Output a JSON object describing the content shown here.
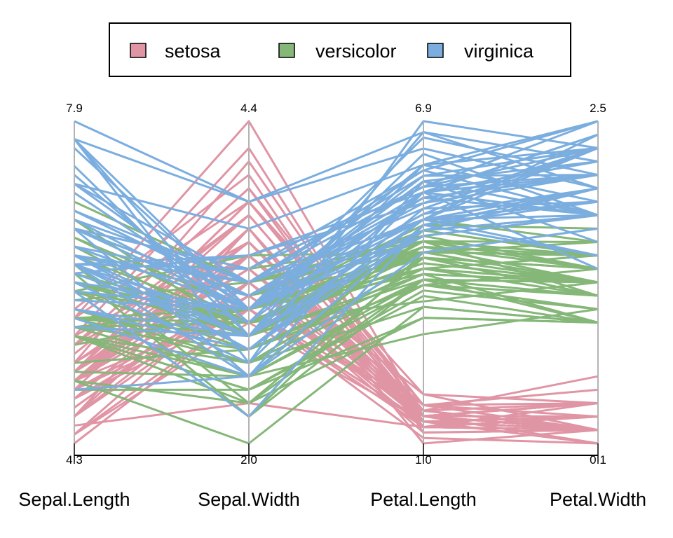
{
  "chart_data": {
    "type": "parallel-coordinates",
    "title": "",
    "legend": {
      "position": "top",
      "frame": true
    },
    "colors": {
      "setosa": "#E095A5",
      "versicolor": "#84B778",
      "virginica": "#7BAEDF",
      "axis": "#b3b3b3",
      "baseline": "#000000"
    },
    "dimensions": [
      {
        "name": "Sepal.Length",
        "min": 4.3,
        "max": 7.9,
        "min_label": "4.3",
        "max_label": "7.9"
      },
      {
        "name": "Sepal.Width",
        "min": 2.0,
        "max": 4.4,
        "min_label": "2.0",
        "max_label": "4.4"
      },
      {
        "name": "Petal.Length",
        "min": 1.0,
        "max": 6.9,
        "min_label": "1.0",
        "max_label": "6.9"
      },
      {
        "name": "Petal.Width",
        "min": 0.1,
        "max": 2.5,
        "min_label": "0.1",
        "max_label": "2.5"
      }
    ],
    "series": [
      {
        "name": "setosa",
        "values": [
          [
            5.1,
            3.5,
            1.4,
            0.2
          ],
          [
            4.9,
            3.0,
            1.4,
            0.2
          ],
          [
            4.7,
            3.2,
            1.3,
            0.2
          ],
          [
            4.6,
            3.1,
            1.5,
            0.2
          ],
          [
            5.0,
            3.6,
            1.4,
            0.2
          ],
          [
            5.4,
            3.9,
            1.7,
            0.4
          ],
          [
            4.6,
            3.4,
            1.4,
            0.3
          ],
          [
            5.0,
            3.4,
            1.5,
            0.2
          ],
          [
            4.4,
            2.9,
            1.4,
            0.2
          ],
          [
            4.9,
            3.1,
            1.5,
            0.1
          ],
          [
            5.4,
            3.7,
            1.5,
            0.2
          ],
          [
            4.8,
            3.4,
            1.6,
            0.2
          ],
          [
            4.8,
            3.0,
            1.4,
            0.1
          ],
          [
            4.3,
            3.0,
            1.1,
            0.1
          ],
          [
            5.8,
            4.0,
            1.2,
            0.2
          ],
          [
            5.7,
            4.4,
            1.5,
            0.4
          ],
          [
            5.4,
            3.9,
            1.3,
            0.4
          ],
          [
            5.1,
            3.5,
            1.4,
            0.3
          ],
          [
            5.7,
            3.8,
            1.7,
            0.3
          ],
          [
            5.1,
            3.8,
            1.5,
            0.3
          ],
          [
            5.4,
            3.4,
            1.7,
            0.2
          ],
          [
            5.1,
            3.7,
            1.5,
            0.4
          ],
          [
            4.6,
            3.6,
            1.0,
            0.2
          ],
          [
            5.1,
            3.3,
            1.7,
            0.5
          ],
          [
            4.8,
            3.4,
            1.9,
            0.2
          ],
          [
            5.0,
            3.0,
            1.6,
            0.2
          ],
          [
            5.0,
            3.4,
            1.6,
            0.4
          ],
          [
            5.2,
            3.5,
            1.5,
            0.2
          ],
          [
            5.2,
            3.4,
            1.4,
            0.2
          ],
          [
            4.7,
            3.2,
            1.6,
            0.2
          ],
          [
            4.8,
            3.1,
            1.6,
            0.2
          ],
          [
            5.4,
            3.4,
            1.5,
            0.4
          ],
          [
            5.2,
            4.1,
            1.5,
            0.1
          ],
          [
            5.5,
            4.2,
            1.4,
            0.2
          ],
          [
            4.9,
            3.1,
            1.5,
            0.2
          ],
          [
            5.0,
            3.2,
            1.2,
            0.2
          ],
          [
            5.5,
            3.5,
            1.3,
            0.2
          ],
          [
            4.9,
            3.6,
            1.4,
            0.1
          ],
          [
            4.4,
            3.0,
            1.3,
            0.2
          ],
          [
            5.1,
            3.4,
            1.5,
            0.2
          ],
          [
            5.0,
            3.5,
            1.3,
            0.3
          ],
          [
            4.5,
            2.3,
            1.3,
            0.3
          ],
          [
            4.4,
            3.2,
            1.3,
            0.2
          ],
          [
            5.0,
            3.5,
            1.6,
            0.6
          ],
          [
            5.1,
            3.8,
            1.9,
            0.4
          ],
          [
            4.8,
            3.0,
            1.4,
            0.3
          ],
          [
            5.1,
            3.8,
            1.6,
            0.2
          ],
          [
            4.6,
            3.2,
            1.4,
            0.2
          ],
          [
            5.3,
            3.7,
            1.5,
            0.2
          ],
          [
            5.0,
            3.3,
            1.4,
            0.2
          ]
        ]
      },
      {
        "name": "versicolor",
        "values": [
          [
            7.0,
            3.2,
            4.7,
            1.4
          ],
          [
            6.4,
            3.2,
            4.5,
            1.5
          ],
          [
            6.9,
            3.1,
            4.9,
            1.5
          ],
          [
            5.5,
            2.3,
            4.0,
            1.3
          ],
          [
            6.5,
            2.8,
            4.6,
            1.5
          ],
          [
            5.7,
            2.8,
            4.5,
            1.3
          ],
          [
            6.3,
            3.3,
            4.7,
            1.6
          ],
          [
            4.9,
            2.4,
            3.3,
            1.0
          ],
          [
            6.6,
            2.9,
            4.6,
            1.3
          ],
          [
            5.2,
            2.7,
            3.9,
            1.4
          ],
          [
            5.0,
            2.0,
            3.5,
            1.0
          ],
          [
            5.9,
            3.0,
            4.2,
            1.5
          ],
          [
            6.0,
            2.2,
            4.0,
            1.0
          ],
          [
            6.1,
            2.9,
            4.7,
            1.4
          ],
          [
            5.6,
            2.9,
            3.6,
            1.3
          ],
          [
            6.7,
            3.1,
            4.4,
            1.4
          ],
          [
            5.6,
            3.0,
            4.5,
            1.5
          ],
          [
            5.8,
            2.7,
            4.1,
            1.0
          ],
          [
            6.2,
            2.2,
            4.5,
            1.5
          ],
          [
            5.6,
            2.5,
            3.9,
            1.1
          ],
          [
            5.9,
            3.2,
            4.8,
            1.8
          ],
          [
            6.1,
            2.8,
            4.0,
            1.3
          ],
          [
            6.3,
            2.5,
            4.9,
            1.5
          ],
          [
            6.1,
            2.8,
            4.7,
            1.2
          ],
          [
            6.4,
            2.9,
            4.3,
            1.3
          ],
          [
            6.6,
            3.0,
            4.4,
            1.4
          ],
          [
            6.8,
            2.8,
            4.8,
            1.4
          ],
          [
            6.7,
            3.0,
            5.0,
            1.7
          ],
          [
            6.0,
            2.9,
            4.5,
            1.5
          ],
          [
            5.7,
            2.6,
            3.5,
            1.0
          ],
          [
            5.5,
            2.4,
            3.8,
            1.1
          ],
          [
            5.5,
            2.4,
            3.7,
            1.0
          ],
          [
            5.8,
            2.7,
            3.9,
            1.2
          ],
          [
            6.0,
            2.7,
            5.1,
            1.6
          ],
          [
            5.4,
            3.0,
            4.5,
            1.5
          ],
          [
            6.0,
            3.4,
            4.5,
            1.6
          ],
          [
            6.7,
            3.1,
            4.7,
            1.5
          ],
          [
            6.3,
            2.3,
            4.4,
            1.3
          ],
          [
            5.6,
            3.0,
            4.1,
            1.3
          ],
          [
            5.5,
            2.5,
            4.0,
            1.3
          ],
          [
            5.5,
            2.6,
            4.4,
            1.2
          ],
          [
            6.1,
            3.0,
            4.6,
            1.4
          ],
          [
            5.8,
            2.6,
            4.0,
            1.2
          ],
          [
            5.0,
            2.3,
            3.3,
            1.0
          ],
          [
            5.6,
            2.7,
            4.2,
            1.3
          ],
          [
            5.7,
            3.0,
            4.2,
            1.2
          ],
          [
            5.7,
            2.9,
            4.2,
            1.3
          ],
          [
            6.2,
            2.9,
            4.3,
            1.3
          ],
          [
            5.1,
            2.5,
            3.0,
            1.1
          ],
          [
            5.7,
            2.8,
            4.1,
            1.3
          ]
        ]
      },
      {
        "name": "virginica",
        "values": [
          [
            6.3,
            3.3,
            6.0,
            2.5
          ],
          [
            5.8,
            2.7,
            5.1,
            1.9
          ],
          [
            7.1,
            3.0,
            5.9,
            2.1
          ],
          [
            6.3,
            2.9,
            5.6,
            1.8
          ],
          [
            6.5,
            3.0,
            5.8,
            2.2
          ],
          [
            7.6,
            3.0,
            6.6,
            2.1
          ],
          [
            4.9,
            2.5,
            4.5,
            1.7
          ],
          [
            7.3,
            2.9,
            6.3,
            1.8
          ],
          [
            6.7,
            2.5,
            5.8,
            1.8
          ],
          [
            7.2,
            3.6,
            6.1,
            2.5
          ],
          [
            6.5,
            3.2,
            5.1,
            2.0
          ],
          [
            6.4,
            2.7,
            5.3,
            1.9
          ],
          [
            6.8,
            3.0,
            5.5,
            2.1
          ],
          [
            5.7,
            2.5,
            5.0,
            2.0
          ],
          [
            5.8,
            2.8,
            5.1,
            2.4
          ],
          [
            6.4,
            3.2,
            5.3,
            2.3
          ],
          [
            6.5,
            3.0,
            5.5,
            1.8
          ],
          [
            7.7,
            3.8,
            6.7,
            2.2
          ],
          [
            7.7,
            2.6,
            6.9,
            2.3
          ],
          [
            6.0,
            2.2,
            5.0,
            1.5
          ],
          [
            6.9,
            3.2,
            5.7,
            2.3
          ],
          [
            5.6,
            2.8,
            4.9,
            2.0
          ],
          [
            7.7,
            2.8,
            6.7,
            2.0
          ],
          [
            6.3,
            2.7,
            4.9,
            1.8
          ],
          [
            6.7,
            3.3,
            5.7,
            2.1
          ],
          [
            7.2,
            3.2,
            6.0,
            1.8
          ],
          [
            6.2,
            2.8,
            4.8,
            1.8
          ],
          [
            6.1,
            3.0,
            4.9,
            1.8
          ],
          [
            6.4,
            2.8,
            5.6,
            2.1
          ],
          [
            7.2,
            3.0,
            5.8,
            1.6
          ],
          [
            7.4,
            2.8,
            6.1,
            1.9
          ],
          [
            7.9,
            3.8,
            6.4,
            2.0
          ],
          [
            6.4,
            2.8,
            5.6,
            2.2
          ],
          [
            6.3,
            2.8,
            5.1,
            1.5
          ],
          [
            6.1,
            2.6,
            5.6,
            1.4
          ],
          [
            7.7,
            3.0,
            6.1,
            2.3
          ],
          [
            6.3,
            3.4,
            5.6,
            2.4
          ],
          [
            6.4,
            3.1,
            5.5,
            1.8
          ],
          [
            6.0,
            3.0,
            4.8,
            1.8
          ],
          [
            6.9,
            3.1,
            5.4,
            2.1
          ],
          [
            6.7,
            3.1,
            5.6,
            2.4
          ],
          [
            6.9,
            3.1,
            5.1,
            2.3
          ],
          [
            5.8,
            2.7,
            5.1,
            1.9
          ],
          [
            6.8,
            3.2,
            5.9,
            2.3
          ],
          [
            6.7,
            3.3,
            5.7,
            2.5
          ],
          [
            6.7,
            3.0,
            5.2,
            2.3
          ],
          [
            6.3,
            2.5,
            5.0,
            1.9
          ],
          [
            6.5,
            3.0,
            5.2,
            2.0
          ],
          [
            6.2,
            3.4,
            5.4,
            2.3
          ],
          [
            5.9,
            3.0,
            5.1,
            1.8
          ]
        ]
      }
    ]
  }
}
